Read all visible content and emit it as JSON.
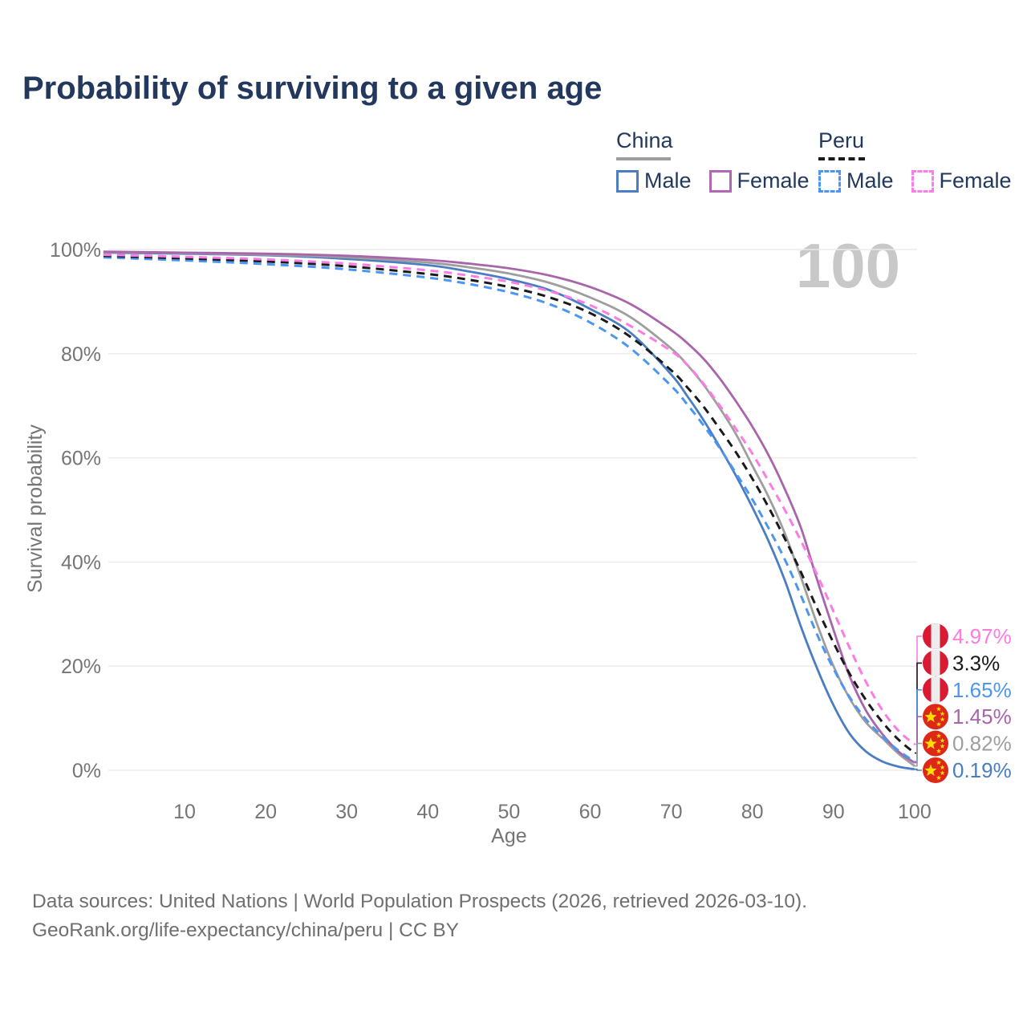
{
  "title": "Probability of surviving to a given age",
  "hover_age_indicator": "100",
  "legend": {
    "groups": [
      {
        "country": "China",
        "line_style": "solid",
        "underline_color": "#9e9e9e",
        "items": [
          {
            "label": "Male",
            "color": "#4a7dc2"
          },
          {
            "label": "Female",
            "color": "#b168b4"
          }
        ]
      },
      {
        "country": "Peru",
        "line_style": "dashed",
        "underline_color": "#1a1a1a",
        "items": [
          {
            "label": "Male",
            "color": "#4b96f5"
          },
          {
            "label": "Female",
            "color": "#fc7ce8"
          }
        ]
      }
    ]
  },
  "footer": {
    "line1": "Data sources: United Nations | World Population Prospects (2026, retrieved 2026-03-10).",
    "line2": "GeoRank.org/life-expectancy/china/peru | CC BY"
  },
  "chart_data": {
    "type": "line",
    "title": "Probability of surviving to a given age",
    "xlabel": "Age",
    "ylabel": "Survival probability",
    "xlim": [
      0,
      100
    ],
    "ylim": [
      0,
      100
    ],
    "grid": "horizontal",
    "legend_position": "top-right",
    "xticks": [
      10,
      20,
      30,
      40,
      50,
      60,
      70,
      80,
      90,
      100
    ],
    "yticks": [
      {
        "value": 0,
        "label": "0%"
      },
      {
        "value": 20,
        "label": "20%"
      },
      {
        "value": 40,
        "label": "40%"
      },
      {
        "value": 60,
        "label": "60%"
      },
      {
        "value": 80,
        "label": "80%"
      },
      {
        "value": 100,
        "label": "100%"
      }
    ],
    "series": [
      {
        "name": "China Male",
        "country": "China",
        "sex": "Male",
        "color": "#4a7dc2",
        "dash": "solid",
        "points": [
          [
            0,
            99.4
          ],
          [
            10,
            99.2
          ],
          [
            20,
            98.9
          ],
          [
            30,
            98.2
          ],
          [
            40,
            97.0
          ],
          [
            45,
            95.8
          ],
          [
            50,
            94.3
          ],
          [
            55,
            92.2
          ],
          [
            60,
            88.6
          ],
          [
            65,
            84.0
          ],
          [
            70,
            76.0
          ],
          [
            72,
            71.8
          ],
          [
            74,
            67.2
          ],
          [
            76,
            62.0
          ],
          [
            78,
            56.5
          ],
          [
            80,
            50.5
          ],
          [
            82,
            44.0
          ],
          [
            84,
            36.5
          ],
          [
            86,
            27.5
          ],
          [
            88,
            19.5
          ],
          [
            90,
            12.5
          ],
          [
            92,
            7.0
          ],
          [
            94,
            3.6
          ],
          [
            96,
            1.7
          ],
          [
            98,
            0.7
          ],
          [
            100,
            0.19
          ]
        ]
      },
      {
        "name": "China Total",
        "country": "China",
        "sex": "Both",
        "color": "#9e9e9e",
        "dash": "solid",
        "points": [
          [
            0,
            99.5
          ],
          [
            10,
            99.3
          ],
          [
            20,
            99.0
          ],
          [
            30,
            98.5
          ],
          [
            40,
            97.5
          ],
          [
            45,
            96.6
          ],
          [
            50,
            95.4
          ],
          [
            55,
            93.6
          ],
          [
            60,
            90.8
          ],
          [
            65,
            87.0
          ],
          [
            70,
            81.0
          ],
          [
            72,
            77.8
          ],
          [
            74,
            74.0
          ],
          [
            76,
            69.5
          ],
          [
            78,
            64.5
          ],
          [
            80,
            58.5
          ],
          [
            82,
            52.5
          ],
          [
            84,
            45.5
          ],
          [
            86,
            37.0
          ],
          [
            88,
            28.0
          ],
          [
            90,
            20.0
          ],
          [
            92,
            13.8
          ],
          [
            94,
            9.2
          ],
          [
            96,
            6.2
          ],
          [
            98,
            3.2
          ],
          [
            100,
            0.82
          ]
        ]
      },
      {
        "name": "China Female",
        "country": "China",
        "sex": "Female",
        "color": "#a965ab",
        "dash": "solid",
        "points": [
          [
            0,
            99.6
          ],
          [
            10,
            99.4
          ],
          [
            20,
            99.2
          ],
          [
            30,
            98.8
          ],
          [
            40,
            98.0
          ],
          [
            45,
            97.3
          ],
          [
            50,
            96.4
          ],
          [
            55,
            95.0
          ],
          [
            60,
            92.8
          ],
          [
            65,
            89.5
          ],
          [
            70,
            84.5
          ],
          [
            72,
            82.0
          ],
          [
            74,
            79.0
          ],
          [
            76,
            75.2
          ],
          [
            78,
            70.8
          ],
          [
            80,
            66.0
          ],
          [
            82,
            60.5
          ],
          [
            84,
            54.0
          ],
          [
            86,
            46.5
          ],
          [
            88,
            36.5
          ],
          [
            90,
            27.0
          ],
          [
            92,
            18.0
          ],
          [
            94,
            11.5
          ],
          [
            96,
            7.0
          ],
          [
            98,
            3.6
          ],
          [
            100,
            1.45
          ]
        ]
      },
      {
        "name": "Peru Male",
        "country": "Peru",
        "sex": "Male",
        "color": "#4b96f5",
        "dash": "dashed",
        "points": [
          [
            0,
            98.5
          ],
          [
            10,
            97.9
          ],
          [
            20,
            97.2
          ],
          [
            30,
            96.2
          ],
          [
            40,
            94.6
          ],
          [
            45,
            93.4
          ],
          [
            50,
            91.8
          ],
          [
            55,
            89.5
          ],
          [
            60,
            86.0
          ],
          [
            65,
            81.0
          ],
          [
            70,
            73.8
          ],
          [
            72,
            70.2
          ],
          [
            74,
            66.2
          ],
          [
            76,
            61.8
          ],
          [
            78,
            57.0
          ],
          [
            80,
            52.0
          ],
          [
            82,
            46.5
          ],
          [
            84,
            40.5
          ],
          [
            86,
            33.5
          ],
          [
            88,
            26.0
          ],
          [
            90,
            19.5
          ],
          [
            92,
            14.0
          ],
          [
            94,
            9.8
          ],
          [
            96,
            6.5
          ],
          [
            98,
            3.8
          ],
          [
            100,
            1.65
          ]
        ]
      },
      {
        "name": "Peru Total",
        "country": "Peru",
        "sex": "Both",
        "color": "#1a1a1a",
        "dash": "dashed",
        "points": [
          [
            0,
            98.8
          ],
          [
            10,
            98.3
          ],
          [
            20,
            97.7
          ],
          [
            30,
            96.8
          ],
          [
            40,
            95.3
          ],
          [
            45,
            94.2
          ],
          [
            50,
            92.8
          ],
          [
            55,
            90.8
          ],
          [
            60,
            87.8
          ],
          [
            65,
            83.2
          ],
          [
            70,
            76.8
          ],
          [
            72,
            73.5
          ],
          [
            74,
            69.8
          ],
          [
            76,
            65.5
          ],
          [
            78,
            61.0
          ],
          [
            80,
            56.0
          ],
          [
            82,
            50.5
          ],
          [
            84,
            44.5
          ],
          [
            86,
            38.0
          ],
          [
            88,
            31.0
          ],
          [
            90,
            24.5
          ],
          [
            92,
            18.5
          ],
          [
            94,
            13.5
          ],
          [
            96,
            9.3
          ],
          [
            98,
            5.9
          ],
          [
            100,
            3.3
          ]
        ]
      },
      {
        "name": "Peru Female",
        "country": "Peru",
        "sex": "Female",
        "color": "#fc7ce4",
        "dash": "dashed",
        "points": [
          [
            0,
            99.0
          ],
          [
            10,
            98.6
          ],
          [
            20,
            98.1
          ],
          [
            30,
            97.3
          ],
          [
            40,
            96.0
          ],
          [
            45,
            95.0
          ],
          [
            50,
            93.8
          ],
          [
            55,
            92.0
          ],
          [
            60,
            89.3
          ],
          [
            65,
            85.3
          ],
          [
            70,
            80.5
          ],
          [
            72,
            77.8
          ],
          [
            74,
            74.2
          ],
          [
            76,
            70.0
          ],
          [
            78,
            65.5
          ],
          [
            80,
            60.8
          ],
          [
            82,
            55.5
          ],
          [
            84,
            50.0
          ],
          [
            86,
            44.0
          ],
          [
            88,
            37.5
          ],
          [
            90,
            30.5
          ],
          [
            92,
            23.5
          ],
          [
            94,
            17.0
          ],
          [
            96,
            11.6
          ],
          [
            98,
            7.6
          ],
          [
            100,
            4.97
          ]
        ]
      }
    ],
    "end_labels": [
      {
        "value": "4.97%",
        "series": "Peru Female",
        "flag": "peru",
        "color": "#fc7ce4"
      },
      {
        "value": "3.3%",
        "series": "Peru Total",
        "flag": "peru",
        "color": "#1a1a1a"
      },
      {
        "value": "1.65%",
        "series": "Peru Male",
        "flag": "peru",
        "color": "#4b96f5"
      },
      {
        "value": "1.45%",
        "series": "China Female",
        "flag": "china",
        "color": "#a965ab"
      },
      {
        "value": "0.82%",
        "series": "China Total",
        "flag": "china",
        "color": "#9e9e9e"
      },
      {
        "value": "0.19%",
        "series": "China Male",
        "flag": "china",
        "color": "#4a7dc2"
      }
    ]
  }
}
